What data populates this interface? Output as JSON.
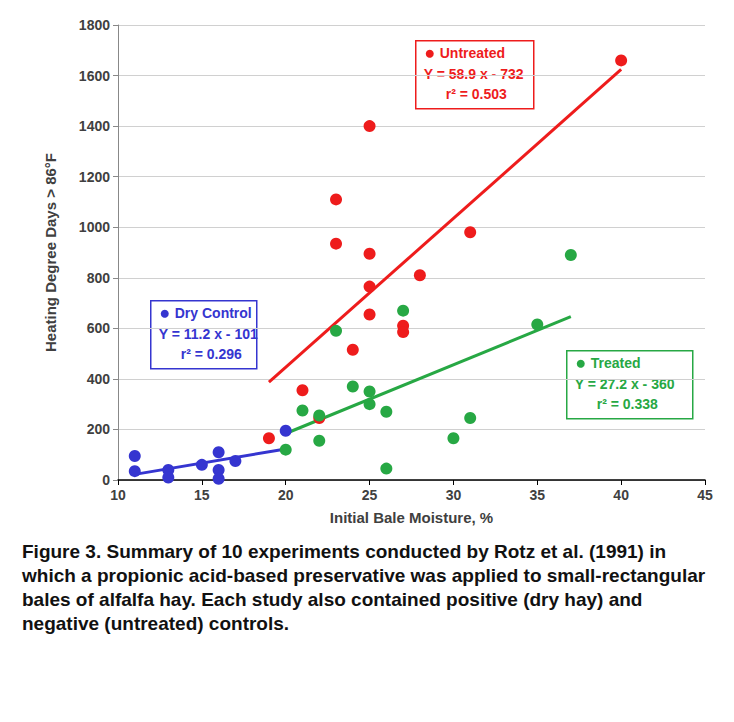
{
  "chart_data": {
    "type": "scatter",
    "xlabel": "Initial Bale Moisture, %",
    "ylabel": "Heating Degree Days > 86°F",
    "xlim": [
      10,
      45
    ],
    "xticks": [
      10,
      15,
      20,
      25,
      30,
      35,
      40,
      45
    ],
    "ylim": [
      0,
      1800
    ],
    "yticks": [
      0,
      200,
      400,
      600,
      800,
      1000,
      1200,
      1400,
      1600,
      1800
    ],
    "grid": true,
    "series": [
      {
        "name": "Dry Control",
        "color": "#3535d0",
        "marker": "circle",
        "x": [
          11,
          11,
          13,
          13,
          15,
          16,
          16,
          16,
          17,
          20
        ],
        "values": [
          95,
          35,
          40,
          10,
          60,
          110,
          40,
          5,
          75,
          195
        ],
        "trend": {
          "equation": "Y = 11.2 x - 101",
          "r2": "r² = 0.296",
          "x": [
            11,
            20
          ],
          "values": [
            22.2,
            123
          ]
        }
      },
      {
        "name": "Untreated",
        "color": "#ee1c1c",
        "marker": "circle",
        "x": [
          19,
          21,
          22,
          23,
          23,
          24,
          25,
          25,
          25,
          25,
          27,
          27,
          28,
          31,
          40
        ],
        "values": [
          165,
          355,
          245,
          1110,
          935,
          515,
          1400,
          895,
          765,
          655,
          610,
          585,
          810,
          980,
          1660
        ],
        "trend": {
          "equation": "Y = 58.9 x - 732",
          "r2": "r² = 0.503",
          "x": [
            19,
            40
          ],
          "values": [
            387.1,
            1624
          ]
        }
      },
      {
        "name": "Treated",
        "color": "#27a844",
        "marker": "circle",
        "x": [
          20,
          21,
          22,
          22,
          23,
          24,
          25,
          25,
          26,
          26,
          27,
          30,
          31,
          35,
          37
        ],
        "values": [
          120,
          275,
          255,
          155,
          590,
          370,
          350,
          300,
          270,
          45,
          670,
          165,
          245,
          615,
          890
        ],
        "trend": {
          "equation": "Y = 27.2 x - 360",
          "r2": "r² = 0.338",
          "x": [
            20,
            37
          ],
          "values": [
            184,
            646.4
          ]
        }
      }
    ],
    "caption": {
      "label": "Figure 3.",
      "text": "Summary of 10 experiments conducted by Rotz et al. (1991) in which a propionic acid-based preservative was applied to small-rectangular bales of alfalfa hay. Each study also contained positive (dry hay) and negative (untreated) controls."
    }
  }
}
